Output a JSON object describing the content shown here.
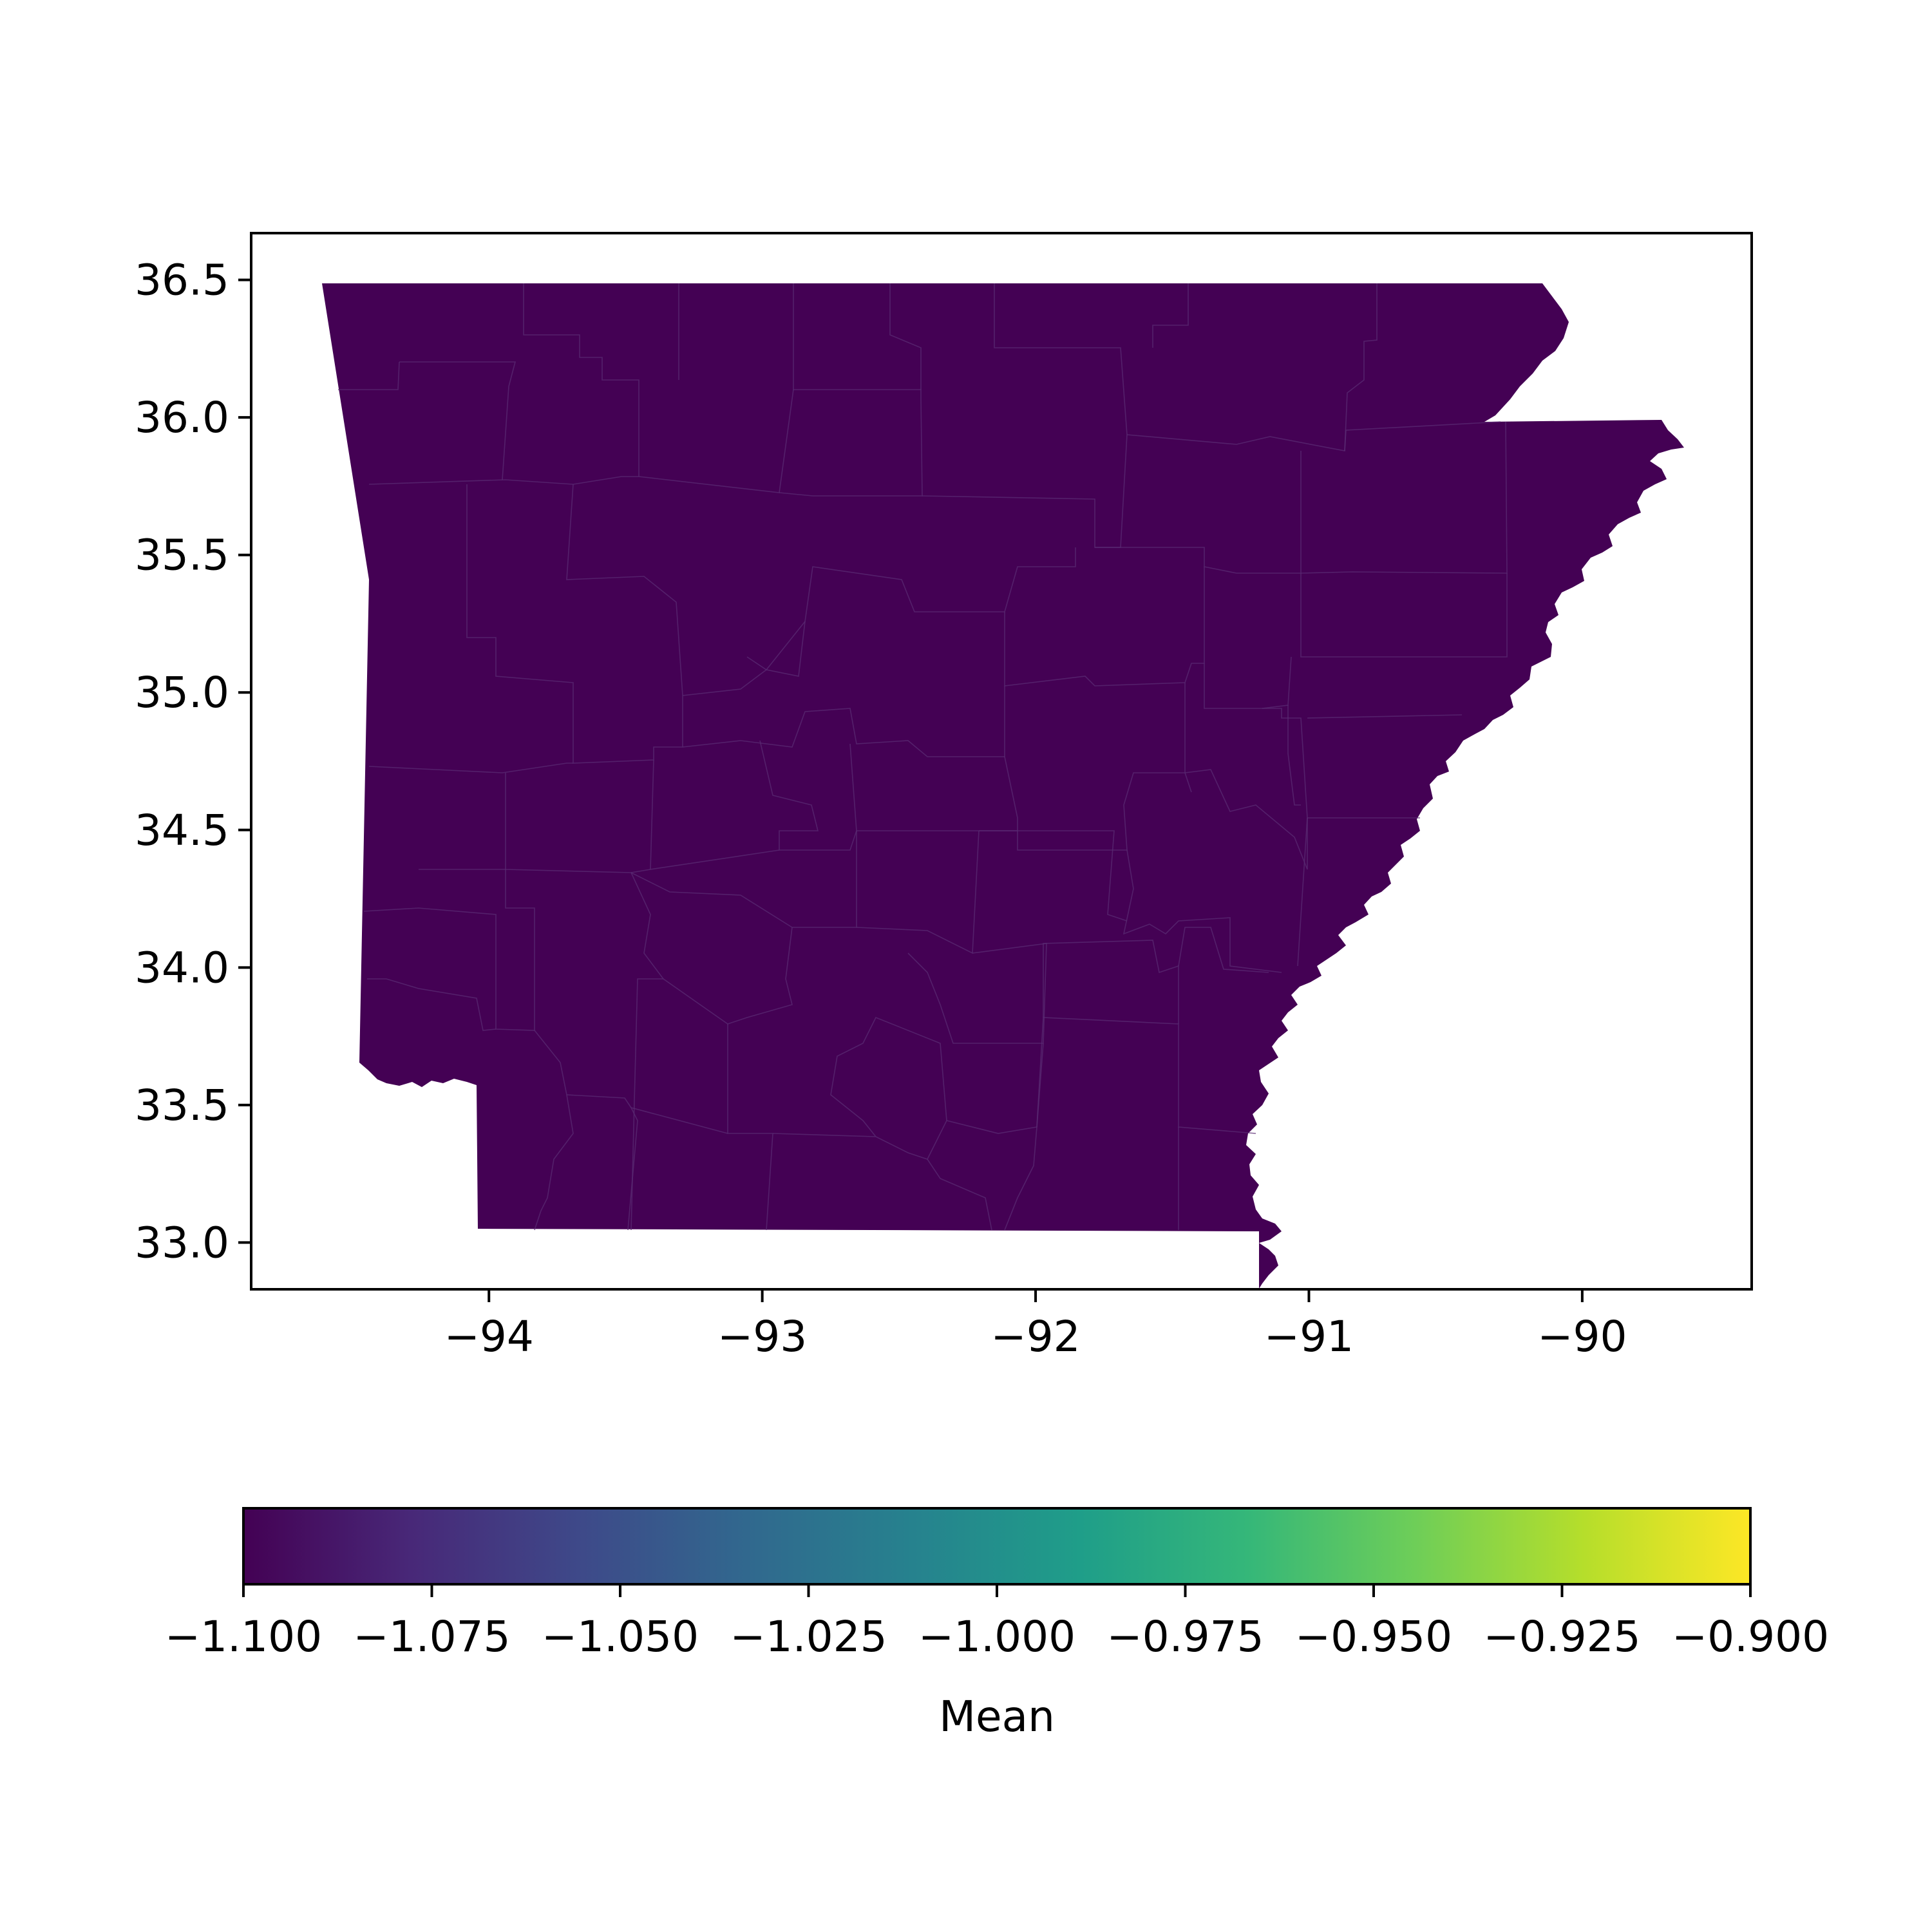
{
  "map": {
    "fill_color": "#440154",
    "county_line_color": "#5a2b73",
    "x_ticks": [
      {
        "value": -94,
        "label": "−94"
      },
      {
        "value": -93,
        "label": "−93"
      },
      {
        "value": -92,
        "label": "−92"
      },
      {
        "value": -91,
        "label": "−91"
      },
      {
        "value": -90,
        "label": "−90"
      }
    ],
    "y_ticks": [
      {
        "value": 33.0,
        "label": "33.0"
      },
      {
        "value": 33.5,
        "label": "33.5"
      },
      {
        "value": 34.0,
        "label": "34.0"
      },
      {
        "value": 34.5,
        "label": "34.5"
      },
      {
        "value": 35.0,
        "label": "35.0"
      },
      {
        "value": 35.5,
        "label": "35.5"
      },
      {
        "value": 36.0,
        "label": "36.0"
      },
      {
        "value": 36.5,
        "label": "36.5"
      }
    ],
    "xlim": [
      -94.87,
      -89.38
    ],
    "ylim": [
      32.83,
      36.67
    ]
  },
  "colorbar": {
    "label": "Mean",
    "colormap": "viridis",
    "range": [
      -1.1,
      -0.9
    ],
    "ticks": [
      {
        "value": -1.1,
        "label": "−1.100"
      },
      {
        "value": -1.075,
        "label": "−1.075"
      },
      {
        "value": -1.05,
        "label": "−1.050"
      },
      {
        "value": -1.025,
        "label": "−1.025"
      },
      {
        "value": -1.0,
        "label": "−1.000"
      },
      {
        "value": -0.975,
        "label": "−0.975"
      },
      {
        "value": -0.95,
        "label": "−0.950"
      },
      {
        "value": -0.925,
        "label": "−0.925"
      },
      {
        "value": -0.9,
        "label": "−0.900"
      }
    ],
    "stops": [
      "#440154",
      "#482878",
      "#3e4989",
      "#31688e",
      "#26828e",
      "#1f9e89",
      "#35b779",
      "#6ece58",
      "#b5de2b",
      "#fde725"
    ]
  }
}
